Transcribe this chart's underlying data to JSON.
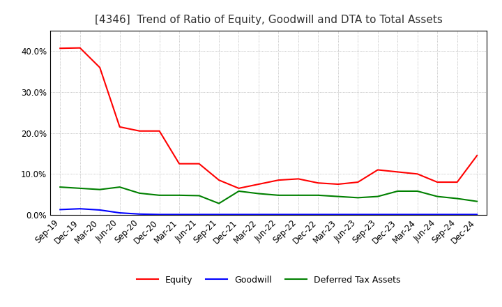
{
  "title": "[4346]  Trend of Ratio of Equity, Goodwill and DTA to Total Assets",
  "x_labels": [
    "Sep-19",
    "Dec-19",
    "Mar-20",
    "Jun-20",
    "Sep-20",
    "Dec-20",
    "Mar-21",
    "Jun-21",
    "Sep-21",
    "Dec-21",
    "Mar-22",
    "Jun-22",
    "Sep-22",
    "Dec-22",
    "Mar-23",
    "Jun-23",
    "Sep-23",
    "Dec-23",
    "Mar-24",
    "Jun-24",
    "Sep-24",
    "Dec-24"
  ],
  "equity": [
    0.407,
    0.408,
    0.36,
    0.215,
    0.205,
    0.205,
    0.125,
    0.125,
    0.085,
    0.065,
    0.075,
    0.085,
    0.088,
    0.078,
    0.075,
    0.08,
    0.11,
    0.105,
    0.1,
    0.08,
    0.08,
    0.145
  ],
  "goodwill": [
    0.013,
    0.015,
    0.012,
    0.005,
    0.002,
    0.001,
    0.001,
    0.001,
    0.001,
    0.001,
    0.001,
    0.001,
    0.001,
    0.001,
    0.001,
    0.001,
    0.001,
    0.001,
    0.001,
    0.001,
    0.001,
    0.001
  ],
  "dta": [
    0.068,
    0.065,
    0.062,
    0.068,
    0.053,
    0.048,
    0.048,
    0.047,
    0.028,
    0.058,
    0.052,
    0.048,
    0.048,
    0.048,
    0.045,
    0.042,
    0.045,
    0.058,
    0.058,
    0.045,
    0.04,
    0.033
  ],
  "equity_color": "#ff0000",
  "goodwill_color": "#0000ff",
  "dta_color": "#008000",
  "ylim": [
    0.0,
    0.45
  ],
  "yticks": [
    0.0,
    0.1,
    0.2,
    0.3,
    0.4
  ],
  "background_color": "#ffffff",
  "grid_color": "#999999",
  "title_fontsize": 11,
  "tick_fontsize": 8.5,
  "legend_fontsize": 9
}
